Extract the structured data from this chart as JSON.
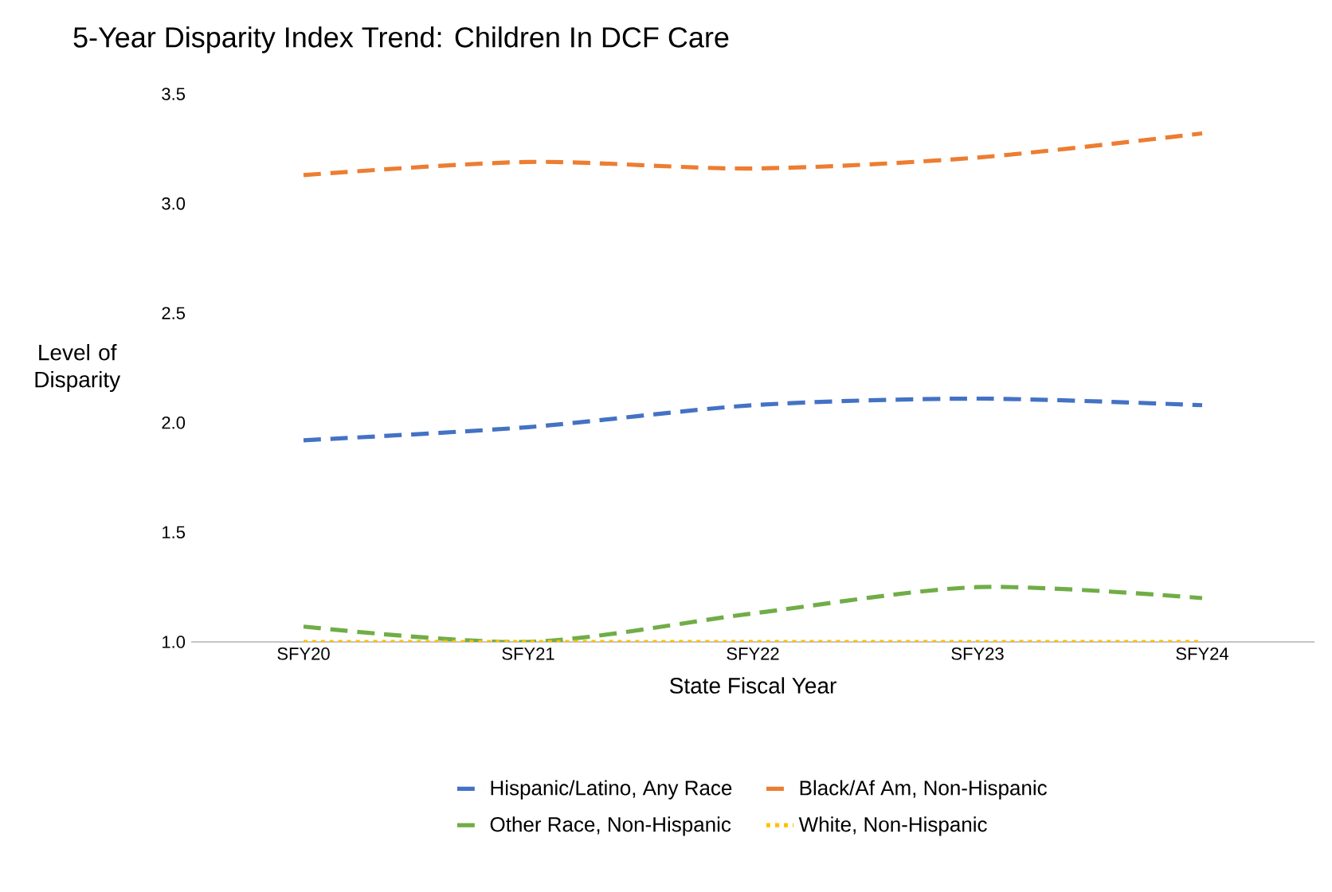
{
  "chart_data": {
    "type": "line",
    "title": "5-Year Disparity Index Trend: Children In DCF Care",
    "xlabel": "State Fiscal Year",
    "ylabel": "Level of Disparity",
    "categories": [
      "SFY20",
      "SFY21",
      "SFY22",
      "SFY23",
      "SFY24"
    ],
    "series": [
      {
        "name": "Hispanic/Latino, Any Race",
        "color": "#4472c4",
        "line_style": "dashed",
        "values": [
          1.92,
          1.98,
          2.08,
          2.11,
          2.08
        ]
      },
      {
        "name": "Black/Af Am, Non-Hispanic",
        "color": "#ed7d31",
        "line_style": "dashed",
        "values": [
          3.13,
          3.19,
          3.16,
          3.21,
          3.32
        ]
      },
      {
        "name": "Other Race, Non-Hispanic",
        "color": "#70ad47",
        "line_style": "dashed",
        "values": [
          1.07,
          1.0,
          1.13,
          1.25,
          1.2
        ]
      },
      {
        "name": "White, Non-Hispanic",
        "color": "#ffc000",
        "line_style": "dotted",
        "values": [
          1.0,
          1.0,
          1.0,
          1.0,
          1.0
        ]
      }
    ],
    "ylim": [
      1.0,
      3.5
    ],
    "yticks": [
      {
        "value": 1.0,
        "label": "1.0"
      },
      {
        "value": 1.5,
        "label": "1.5"
      },
      {
        "value": 2.0,
        "label": "2.0"
      },
      {
        "value": 2.5,
        "label": "2.5"
      },
      {
        "value": 3.0,
        "label": "3.0"
      },
      {
        "value": 3.5,
        "label": "3.5"
      }
    ],
    "grid": false,
    "legend": "bottom",
    "marker": "none"
  }
}
